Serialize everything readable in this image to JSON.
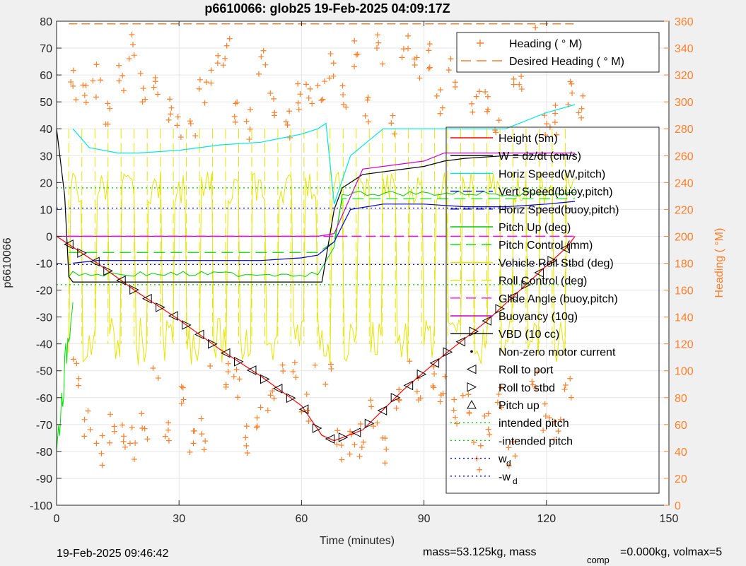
{
  "chart_data": {
    "type": "line",
    "title": "p6610066: glob25 19-Feb-2025 04:09:17Z",
    "xlabel": "Time (minutes)",
    "ylabel": "p6610066",
    "ylabel_right": "Heading (  °M)",
    "xlim": [
      0,
      150
    ],
    "ylim": [
      -100,
      80
    ],
    "ylim_right": [
      0,
      360
    ],
    "x_ticks": [
      "0",
      "30",
      "60",
      "90",
      "120",
      "150"
    ],
    "y_ticks": [
      "-100",
      "-90",
      "-80",
      "-70",
      "-60",
      "-50",
      "-40",
      "-30",
      "-20",
      "-10",
      "0",
      "10",
      "20",
      "30",
      "40",
      "50",
      "60",
      "70",
      "80"
    ],
    "y_ticks_right": [
      "0",
      "20",
      "40",
      "60",
      "80",
      "100",
      "120",
      "140",
      "160",
      "180",
      "200",
      "220",
      "240",
      "260",
      "280",
      "300",
      "320",
      "340",
      "360"
    ],
    "grid": true,
    "heading_legend": [
      {
        "label": "Heading (   ° M)",
        "color": "#ff7f2a"
      },
      {
        "label": "Desired Heading (     ° M)",
        "color": "#ff7f2a"
      }
    ],
    "legend": [
      {
        "label": "Height (5m)",
        "color": "#ff0000"
      },
      {
        "label": "W = dz/dt (cm/s)",
        "color": "#000000"
      },
      {
        "label": "Horiz Speed(W,pitch)",
        "color": "#00e5e5"
      },
      {
        "label": "Vert Speed(buoy,pitch)",
        "color": "#0000cc"
      },
      {
        "label": "Horiz Speed(buoy,pitch)",
        "color": "#0000ff"
      },
      {
        "label": "Pitch Up (deg)",
        "color": "#00cc00"
      },
      {
        "label": "Pitch Control (mm)",
        "color": "#00dd00"
      },
      {
        "label": "Vehicle Roll Stbd (deg)",
        "color": "#e5e500"
      },
      {
        "label": "Roll Control (deg)",
        "color": "#e5e500"
      },
      {
        "label": "Glide Angle (buoy,pitch)",
        "color": "#ff00ff"
      },
      {
        "label": "Buoyancy (10g)",
        "color": "#cc00cc"
      },
      {
        "label": "VBD (10 cc)",
        "color": "#000000"
      },
      {
        "label": "Non-zero motor current",
        "color": "#000000"
      },
      {
        "label": "Roll to port",
        "color": "#000000"
      },
      {
        "label": "Roll to stbd",
        "color": "#000000"
      },
      {
        "label": "Pitch up",
        "color": "#000000"
      },
      {
        "label": "intended pitch",
        "color": "#00cc00"
      },
      {
        "label": "-intended pitch",
        "color": "#00cc00"
      },
      {
        "label": "w",
        "sub": "d",
        "color": "#0000cc"
      },
      {
        "label": "-w",
        "sub": "d",
        "color": "#0000cc"
      }
    ],
    "series": [
      {
        "name": "Height (5m)",
        "x": [
          0,
          3,
          10,
          20,
          30,
          40,
          50,
          60,
          65,
          68,
          75,
          85,
          95,
          105,
          115,
          125,
          127
        ],
        "y": [
          0,
          -3,
          -10,
          -21,
          -31,
          -42,
          -52,
          -63,
          -74,
          -76,
          -72,
          -57,
          -44,
          -32,
          -18,
          -4,
          0
        ]
      },
      {
        "name": "VBD (10 cc)",
        "x": [
          0,
          2,
          3,
          4,
          65,
          68,
          70,
          75,
          90,
          95,
          100,
          110,
          127
        ],
        "y": [
          40,
          15,
          -15,
          -17,
          -17,
          10,
          18,
          23,
          26,
          28,
          29,
          30,
          30
        ]
      },
      {
        "name": "Buoyancy (10g)",
        "x": [
          0,
          2,
          3,
          64,
          68,
          75,
          90,
          95,
          110,
          127
        ],
        "y": [
          0,
          0,
          0,
          0,
          1,
          25,
          28,
          31,
          31,
          31
        ]
      },
      {
        "name": "Horiz Speed(W,pitch)",
        "x": [
          4,
          8,
          15,
          20,
          30,
          40,
          50,
          60,
          64,
          66,
          68,
          72,
          80,
          90,
          100,
          110,
          120,
          127
        ],
        "y": [
          40,
          33,
          31,
          31,
          32,
          34,
          35,
          38,
          40,
          42,
          12,
          30,
          40,
          40,
          40,
          40,
          46,
          49
        ]
      },
      {
        "name": "Vert Speed(buoy,pitch)",
        "x": [
          4,
          10,
          20,
          30,
          40,
          50,
          60,
          64,
          68,
          72,
          80,
          90,
          100,
          110,
          120,
          127
        ],
        "y": [
          -10,
          -9,
          -9,
          -9,
          -9,
          -9,
          -8,
          -7,
          -2,
          10,
          12,
          12,
          11,
          11,
          12,
          13
        ]
      },
      {
        "name": "Glide Angle (buoy,pitch)",
        "x": [
          3,
          127
        ],
        "y": [
          0,
          0
        ]
      },
      {
        "name": "intended pitch",
        "x": [
          0,
          127
        ],
        "y": [
          18,
          18
        ]
      },
      {
        "name": "-intended pitch",
        "x": [
          0,
          127
        ],
        "y": [
          -18,
          -18
        ]
      },
      {
        "name": "w_d",
        "x": [
          0,
          127
        ],
        "y": [
          10.5,
          10.5
        ]
      },
      {
        "name": "-w_d",
        "x": [
          0,
          127
        ],
        "y": [
          -10.5,
          -10.5
        ]
      }
    ]
  },
  "footer": {
    "timestamp": "19-Feb-2025 09:46:42",
    "mass": "mass=53.125kg, mass",
    "comp_sub": "comp",
    "volmax": "=0.000kg, volmax=5"
  }
}
